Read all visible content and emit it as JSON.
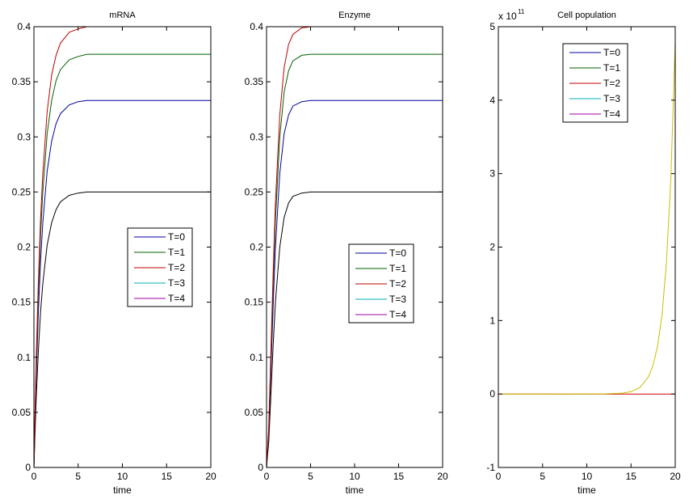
{
  "chart_data": [
    {
      "type": "line",
      "title": "mRNA",
      "xlabel": "time",
      "ylabel": "",
      "xlim": [
        0,
        20
      ],
      "ylim": [
        0,
        0.4
      ],
      "xticks": [
        0,
        5,
        10,
        15,
        20
      ],
      "xtick_labels": [
        "0",
        "5",
        "10",
        "15",
        "20"
      ],
      "yticks": [
        0,
        0.05,
        0.1,
        0.15,
        0.2,
        0.25,
        0.3,
        0.35,
        0.4
      ],
      "ytick_labels": [
        "0",
        "0.05",
        "0.1",
        "0.15",
        "0.2",
        "0.25",
        "0.3",
        "0.35",
        "0.4"
      ],
      "grid": false,
      "legend_placement": "center-right",
      "legend": [
        {
          "label": "T=0",
          "color": "#0000a0"
        },
        {
          "label": "T=1",
          "color": "#006000"
        },
        {
          "label": "T=2",
          "color": "#c00000"
        },
        {
          "label": "T=3",
          "color": "#00b0b0"
        },
        {
          "label": "T=4",
          "color": "#a000a0"
        }
      ],
      "x": [
        0,
        0.25,
        0.5,
        0.75,
        1,
        1.5,
        2,
        2.5,
        3,
        4,
        5,
        6,
        8,
        10,
        15,
        20
      ],
      "series": [
        {
          "color": "#000000",
          "values": [
            0,
            0.06,
            0.106,
            0.141,
            0.167,
            0.202,
            0.222,
            0.234,
            0.241,
            0.247,
            0.249,
            0.25,
            0.25,
            0.25,
            0.25,
            0.25
          ]
        },
        {
          "color": "#0000a0",
          "values": [
            0,
            0.08,
            0.141,
            0.187,
            0.222,
            0.269,
            0.296,
            0.312,
            0.321,
            0.329,
            0.332,
            0.333,
            0.333,
            0.333,
            0.333,
            0.333
          ]
        },
        {
          "color": "#006000",
          "values": [
            0,
            0.09,
            0.159,
            0.211,
            0.25,
            0.303,
            0.333,
            0.351,
            0.361,
            0.37,
            0.373,
            0.375,
            0.375,
            0.375,
            0.375,
            0.375
          ]
        },
        {
          "color": "#c00000",
          "values": [
            0,
            0.096,
            0.169,
            0.225,
            0.267,
            0.323,
            0.356,
            0.374,
            0.385,
            0.395,
            0.398,
            0.4,
            0.4,
            0.4,
            0.4,
            0.4
          ]
        },
        {
          "color": "#c8c000",
          "values": [
            0,
            0,
            0,
            0,
            0,
            0,
            0,
            0,
            0,
            0,
            0,
            0,
            0,
            0,
            0,
            0
          ]
        }
      ]
    },
    {
      "type": "line",
      "title": "Enzyme",
      "xlabel": "time",
      "ylabel": "",
      "xlim": [
        0,
        20
      ],
      "ylim": [
        0,
        0.4
      ],
      "xticks": [
        0,
        5,
        10,
        15,
        20
      ],
      "xtick_labels": [
        "0",
        "5",
        "10",
        "15",
        "20"
      ],
      "yticks": [
        0,
        0.05,
        0.1,
        0.15,
        0.2,
        0.25,
        0.3,
        0.35,
        0.4
      ],
      "ytick_labels": [
        "0",
        "0.05",
        "0.1",
        "0.15",
        "0.2",
        "0.25",
        "0.3",
        "0.35",
        "0.4"
      ],
      "grid": false,
      "legend_placement": "center-right",
      "legend": [
        {
          "label": "T=0",
          "color": "#0000a0"
        },
        {
          "label": "T=1",
          "color": "#006000"
        },
        {
          "label": "T=2",
          "color": "#c00000"
        },
        {
          "label": "T=3",
          "color": "#00b0b0"
        },
        {
          "label": "T=4",
          "color": "#a000a0"
        }
      ],
      "x": [
        0,
        0.25,
        0.5,
        0.75,
        1,
        1.5,
        2,
        2.5,
        3,
        4,
        5,
        6,
        8,
        10,
        15,
        20
      ],
      "series": [
        {
          "color": "#000000",
          "values": [
            0,
            0.023,
            0.066,
            0.111,
            0.149,
            0.2,
            0.227,
            0.24,
            0.246,
            0.249,
            0.25,
            0.25,
            0.25,
            0.25,
            0.25,
            0.25
          ]
        },
        {
          "color": "#0000a0",
          "values": [
            0,
            0.03,
            0.088,
            0.147,
            0.198,
            0.267,
            0.303,
            0.32,
            0.328,
            0.332,
            0.333,
            0.333,
            0.333,
            0.333,
            0.333,
            0.333
          ]
        },
        {
          "color": "#006000",
          "values": [
            0,
            0.034,
            0.099,
            0.166,
            0.223,
            0.3,
            0.341,
            0.36,
            0.369,
            0.374,
            0.375,
            0.375,
            0.375,
            0.375,
            0.375,
            0.375
          ]
        },
        {
          "color": "#c00000",
          "values": [
            0,
            0.036,
            0.106,
            0.177,
            0.238,
            0.32,
            0.363,
            0.384,
            0.393,
            0.399,
            0.4,
            0.4,
            0.4,
            0.4,
            0.4,
            0.4
          ]
        },
        {
          "color": "#c8c000",
          "values": [
            0,
            0,
            0,
            0,
            0,
            0,
            0,
            0,
            0,
            0,
            0,
            0,
            0,
            0,
            0,
            0
          ]
        }
      ]
    },
    {
      "type": "line",
      "title": "Cell population",
      "xlabel": "time",
      "ylabel": "",
      "y_multiplier_label": "x 10",
      "y_multiplier_exponent": "11",
      "xlim": [
        0,
        20
      ],
      "ylim": [
        -1,
        5
      ],
      "xticks": [
        0,
        5,
        10,
        15,
        20
      ],
      "xtick_labels": [
        "0",
        "5",
        "10",
        "15",
        "20"
      ],
      "yticks": [
        -1,
        0,
        1,
        2,
        3,
        4,
        5
      ],
      "ytick_labels": [
        "-1",
        "0",
        "1",
        "2",
        "3",
        "4",
        "5"
      ],
      "grid": false,
      "legend_placement": "top-center",
      "legend": [
        {
          "label": "T=0",
          "color": "#0000a0"
        },
        {
          "label": "T=1",
          "color": "#006000"
        },
        {
          "label": "T=2",
          "color": "#c00000"
        },
        {
          "label": "T=3",
          "color": "#00b0b0"
        },
        {
          "label": "T=4",
          "color": "#a000a0"
        }
      ],
      "x": [
        0,
        5,
        10,
        12,
        14,
        15,
        16,
        17,
        17.5,
        18,
        18.5,
        19,
        19.5,
        20
      ],
      "series": [
        {
          "color": "#d00000",
          "values": [
            0,
            0,
            0,
            0,
            0,
            0,
            0,
            0,
            0,
            0,
            0,
            0,
            0,
            0
          ]
        },
        {
          "color": "#c8c000",
          "values": [
            0,
            0,
            0.0002,
            0.0016,
            0.012,
            0.032,
            0.088,
            0.239,
            0.394,
            0.65,
            1.07,
            1.77,
            2.91,
            4.8
          ]
        }
      ]
    }
  ]
}
